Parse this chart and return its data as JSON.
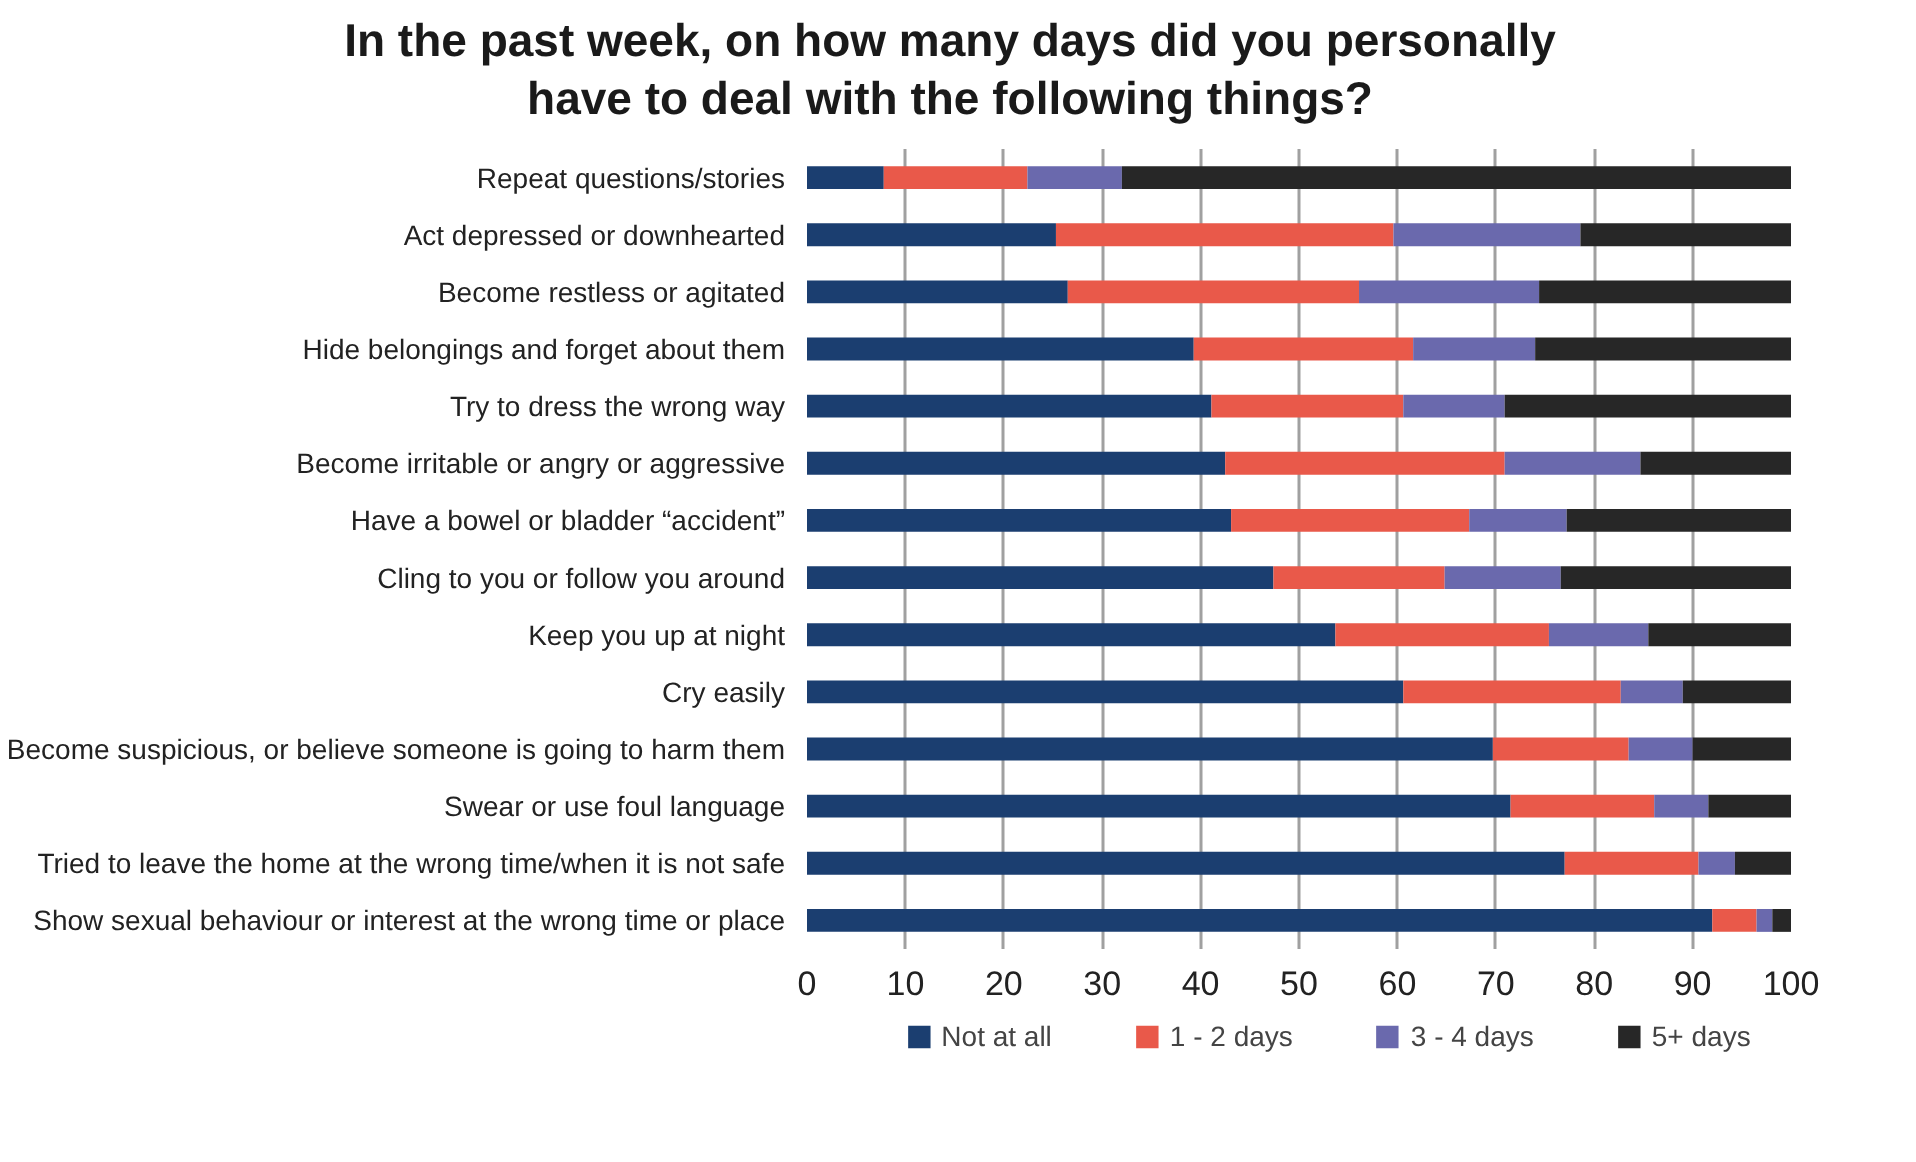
{
  "chart_data": {
    "type": "bar",
    "orientation": "horizontal",
    "stacked": true,
    "title": "In the past week, on how many days did you personally\nhave to deal with the following things?",
    "categories": [
      "Repeat questions/stories",
      "Act depressed or downhearted",
      "Become restless or agitated",
      "Hide belongings and forget about them",
      "Try to dress the wrong way",
      "Become irritable or angry or aggressive",
      "Have a bowel or bladder “accident”",
      "Cling to you or follow you around",
      "Keep you up at night",
      "Cry easily",
      "Become suspicious, or believe someone is going to harm them",
      "Swear or use foul language",
      "Tried to leave the home at the wrong time/when it is not safe",
      "Show sexual behaviour or interest at the wrong time or place"
    ],
    "series": [
      {
        "name": "Not at all",
        "color": "#1b3e70",
        "values": [
          7.8,
          25.3,
          26.5,
          39.3,
          41.1,
          42.5,
          43.1,
          47.4,
          53.7,
          60.6,
          69.7,
          71.5,
          77.0,
          92.0
        ]
      },
      {
        "name": "1 - 2 days",
        "color": "#e9594a",
        "values": [
          14.6,
          34.3,
          29.6,
          22.3,
          19.5,
          28.4,
          24.2,
          17.4,
          21.7,
          22.1,
          13.8,
          14.6,
          13.6,
          4.5
        ]
      },
      {
        "name": "3 - 4 days",
        "color": "#6a69ad",
        "values": [
          9.6,
          19.0,
          18.3,
          12.4,
          10.3,
          13.8,
          9.9,
          11.8,
          10.1,
          6.3,
          6.5,
          5.5,
          3.7,
          1.6
        ]
      },
      {
        "name": "5+ days",
        "color": "#272727",
        "values": [
          68.0,
          21.4,
          25.6,
          26.0,
          29.1,
          15.3,
          22.8,
          23.4,
          14.5,
          11.0,
          10.0,
          8.4,
          5.7,
          1.9
        ]
      }
    ],
    "xlim": [
      0,
      100
    ],
    "xticks": [
      0,
      10,
      20,
      30,
      40,
      50,
      60,
      70,
      80,
      90,
      100
    ],
    "grid": "x",
    "legend": "bottom"
  }
}
